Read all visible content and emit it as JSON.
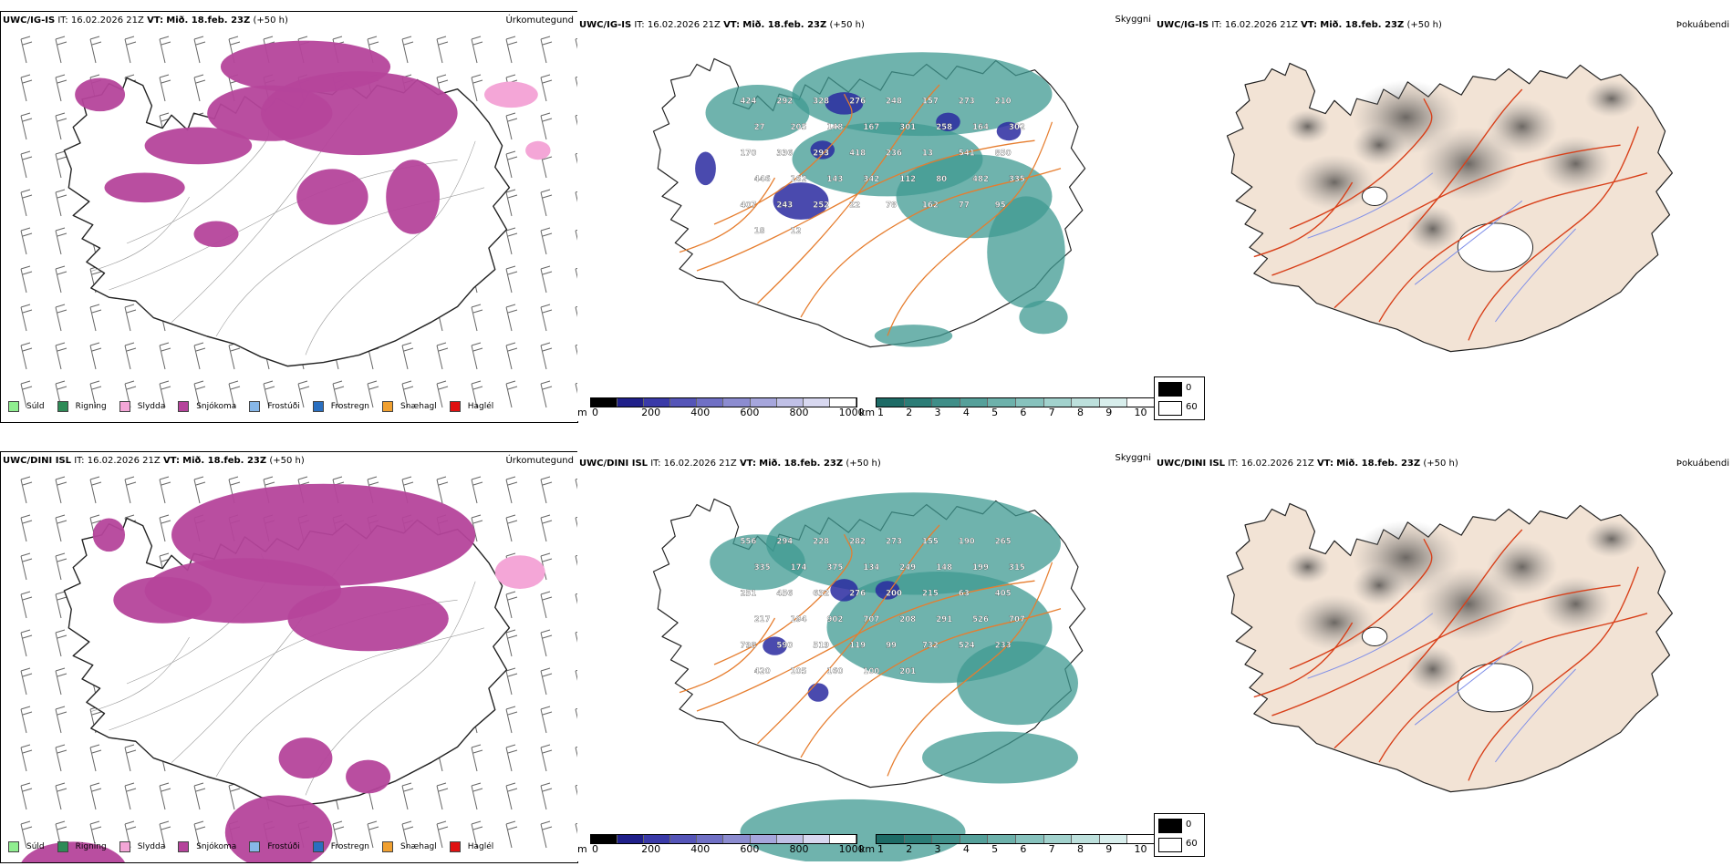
{
  "rows": [
    {
      "model": "UWC/IG-IS",
      "it_label": "IT:",
      "it_value": "16.02.2026 21Z",
      "vt_label": "VT:",
      "vt_value": "Mið. 18.feb. 23Z",
      "lead": "(+50 h)",
      "panels": {
        "precip": {
          "title": "Úrkomutegund"
        },
        "visibility": {
          "title": "Skyggni",
          "labels": [
            "424",
            "292",
            "328",
            "276",
            "248",
            "157",
            "273",
            "210",
            "27",
            "205",
            "148",
            "167",
            "301",
            "258",
            "164",
            "302",
            "170",
            "336",
            "293",
            "418",
            "236",
            "13",
            "541",
            "850",
            "446",
            "162",
            "143",
            "342",
            "112",
            "80",
            "482",
            "335",
            "407",
            "243",
            "252",
            "22",
            "78",
            "162",
            "77",
            "95",
            "18",
            "12"
          ]
        },
        "fog": {
          "title": "Þokuábendi"
        }
      }
    },
    {
      "model": "UWC/DINI ISL",
      "it_label": "IT:",
      "it_value": "16.02.2026 21Z",
      "vt_label": "VT:",
      "vt_value": "Mið. 18.feb. 23Z",
      "lead": "(+50 h)",
      "panels": {
        "precip": {
          "title": "Úrkomutegund"
        },
        "visibility": {
          "title": "Skyggni",
          "labels": [
            "556",
            "294",
            "228",
            "282",
            "273",
            "155",
            "190",
            "265",
            "335",
            "174",
            "375",
            "134",
            "249",
            "148",
            "199",
            "315",
            "251",
            "456",
            "632",
            "276",
            "200",
            "215",
            "63",
            "405",
            "217",
            "194",
            "902",
            "707",
            "208",
            "291",
            "526",
            "707",
            "798",
            "590",
            "519",
            "119",
            "99",
            "732",
            "524",
            "233",
            "420",
            "105",
            "160",
            "100",
            "201"
          ]
        },
        "fog": {
          "title": "Þokuábendi"
        }
      }
    }
  ],
  "precip_legend": [
    {
      "label": "Súld",
      "color": "#90ee90"
    },
    {
      "label": "Rigning",
      "color": "#2e8b57"
    },
    {
      "label": "Slydda",
      "color": "#f4a6d7"
    },
    {
      "label": "Snjókoma",
      "color": "#b5449b"
    },
    {
      "label": "Frostúði",
      "color": "#87b7e8"
    },
    {
      "label": "Frostregn",
      "color": "#2a6fc0"
    },
    {
      "label": "Snæhagl",
      "color": "#f0a030"
    },
    {
      "label": "Haglél",
      "color": "#e01010"
    }
  ],
  "ceiling_bar": {
    "unit": "m",
    "ticks": [
      "0",
      "200",
      "400",
      "600",
      "800",
      "1000"
    ],
    "colors": [
      "#000000",
      "#20208a",
      "#3a3aa8",
      "#5555b8",
      "#7070c5",
      "#8c8cd0",
      "#a6a6dc",
      "#c0c0e6",
      "#d8d8f0",
      "#ffffff"
    ]
  },
  "vis_bar": {
    "unit": "km",
    "ticks": [
      "1",
      "2",
      "3",
      "4",
      "5",
      "6",
      "7",
      "8",
      "9",
      "10"
    ],
    "colors": [
      "#1d6b66",
      "#2c7d77",
      "#3f8e88",
      "#55a09a",
      "#6db1ab",
      "#87c2bd",
      "#a2d2cd",
      "#bde0dc",
      "#d8eeec",
      "#ffffff"
    ]
  },
  "fog_legend": {
    "values": [
      "0",
      "60"
    ],
    "colors": [
      "#000000",
      "#ffffff"
    ]
  },
  "colors": {
    "land": "#f2e3d5",
    "coast": "#111111",
    "roads_orange": "#e67d2e",
    "roads_red": "#d8401a",
    "rivers": "#7f8ee8",
    "snow": "#b5449b",
    "teal": "#3f9a92",
    "navy": "#2a2aa0"
  }
}
